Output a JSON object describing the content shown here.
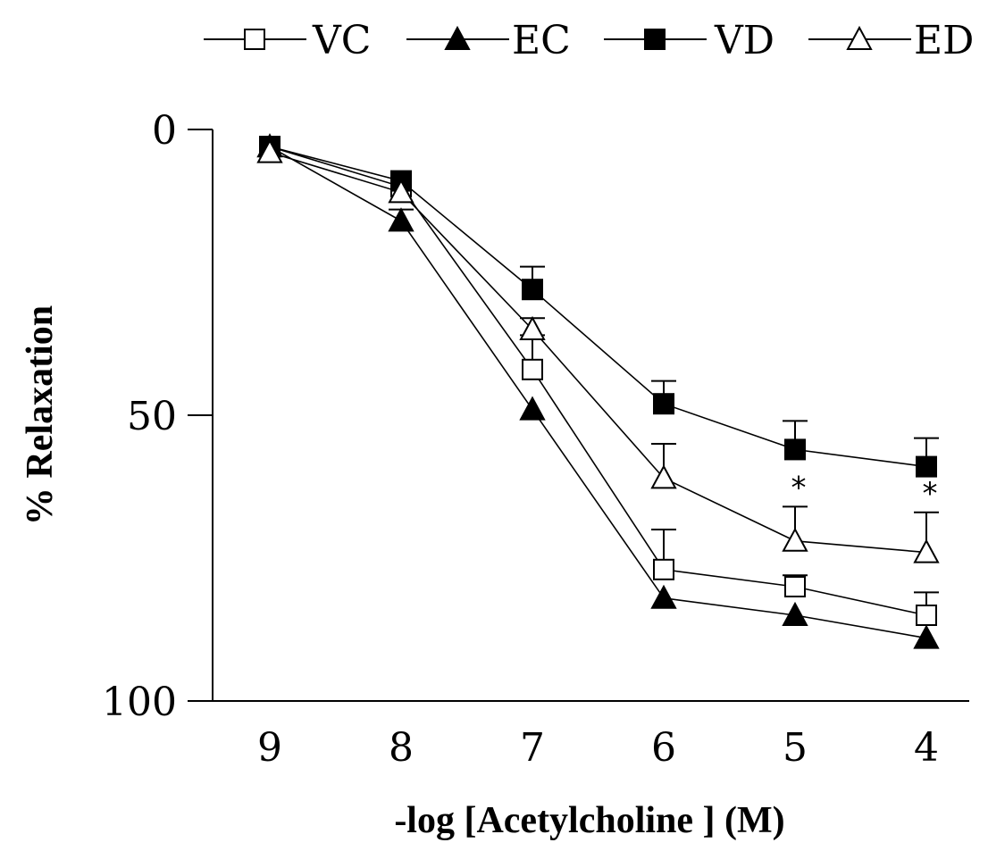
{
  "chart_data": {
    "type": "line",
    "title": "",
    "xlabel": "-log [Acetylcholine ] (M)",
    "ylabel": "% Relaxation",
    "categories": [
      "9",
      "8",
      "7",
      "6",
      "5",
      "4"
    ],
    "y_ticks": [
      "0",
      "50",
      "100"
    ],
    "ylim": [
      0,
      100
    ],
    "y_inverted": true,
    "grid": false,
    "legend": {
      "placement": "top"
    },
    "series": [
      {
        "name": "VC",
        "marker": "open-square",
        "values": [
          3,
          10,
          42,
          77,
          80,
          85
        ],
        "error": [
          0,
          0,
          6,
          7,
          2,
          4
        ]
      },
      {
        "name": "EC",
        "marker": "filled-triangle",
        "values": [
          3,
          16,
          49,
          82,
          85,
          89
        ],
        "error": [
          0,
          2,
          0,
          0,
          0,
          0
        ]
      },
      {
        "name": "VD",
        "marker": "filled-square",
        "values": [
          3,
          9,
          28,
          48,
          56,
          59
        ],
        "error": [
          0,
          0,
          4,
          4,
          5,
          5
        ]
      },
      {
        "name": "ED",
        "marker": "open-triangle",
        "values": [
          4,
          11,
          35,
          61,
          72,
          74
        ],
        "error": [
          0,
          0,
          2,
          6,
          6,
          7
        ]
      }
    ],
    "annotations": [
      {
        "text": "*",
        "category": "5",
        "series": "ED"
      },
      {
        "text": "*",
        "category": "4",
        "series": "ED"
      }
    ]
  }
}
